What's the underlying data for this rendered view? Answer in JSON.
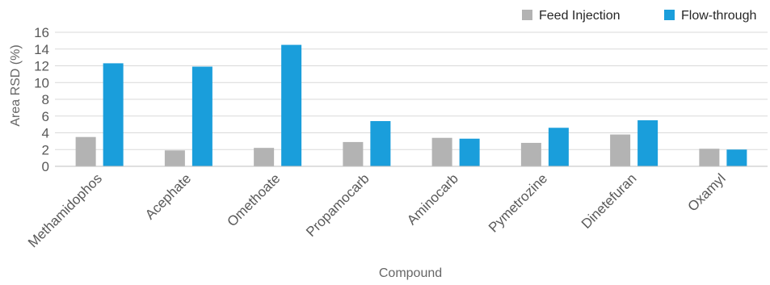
{
  "chart_data": {
    "type": "bar",
    "title": "",
    "xlabel": "Compound",
    "ylabel": "Area RSD (%)",
    "ylim": [
      0,
      16
    ],
    "yticks": [
      0,
      2,
      4,
      6,
      8,
      10,
      12,
      14,
      16
    ],
    "grid": true,
    "legend_position": "top-right",
    "categories": [
      "Methamidophos",
      "Acephate",
      "Omethoate",
      "Propamocarb",
      "Aminocarb",
      "Pymetrozine",
      "Dinetefuran",
      "Oxamyl"
    ],
    "series": [
      {
        "name": "Feed Injection",
        "color": "#b3b3b3",
        "values": [
          3.5,
          1.9,
          2.2,
          2.9,
          3.4,
          2.8,
          3.8,
          2.1
        ]
      },
      {
        "name": "Flow-through",
        "color": "#1a9edb",
        "values": [
          12.3,
          11.9,
          14.5,
          5.4,
          3.3,
          4.6,
          5.5,
          2.0
        ]
      }
    ]
  }
}
